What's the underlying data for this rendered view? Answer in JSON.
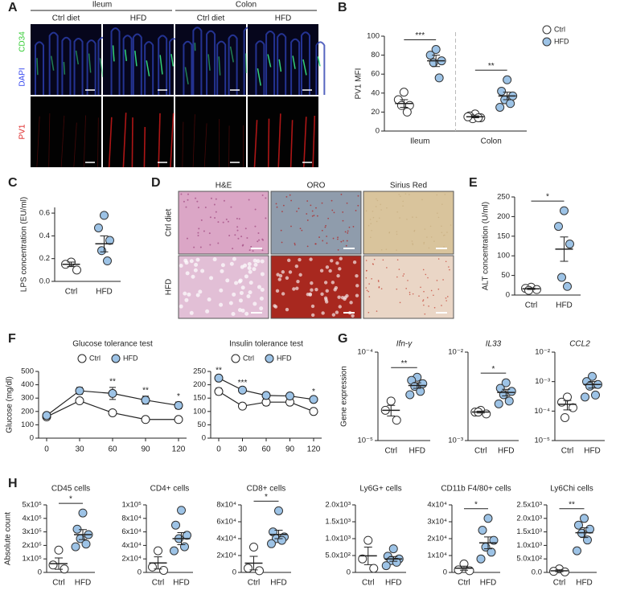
{
  "figure": {
    "panel_labels": [
      "A",
      "B",
      "C",
      "D",
      "E",
      "F",
      "G",
      "H"
    ],
    "panel_a": {
      "tissues": [
        "Ileum",
        "Colon"
      ],
      "conditions": [
        "Ctrl diet",
        "HFD",
        "Ctrl diet",
        "HFD"
      ],
      "stains": [
        "CD34",
        "DAPI",
        "PV1"
      ]
    },
    "panel_d": {
      "stains": [
        "H&E",
        "ORO",
        "Sirius Red"
      ],
      "conditions": [
        "Ctrl diet",
        "HFD"
      ]
    }
  },
  "chart_data": [
    {
      "type": "dot",
      "ylabel": "PV1 MFI",
      "categories": [
        "Ileum",
        "Colon"
      ],
      "ylim": [
        0,
        100
      ],
      "yticks": [
        0,
        20,
        40,
        60,
        80,
        100
      ],
      "legend": "right",
      "series": [
        {
          "name": "Ctrl",
          "color": "#ffffff",
          "values": [
            [
              41,
              33,
              27,
              27,
              20
            ],
            [
              18,
              16,
              14,
              13,
              14,
              15
            ]
          ],
          "means": [
            29,
            15
          ],
          "errors": [
            4,
            1
          ]
        },
        {
          "name": "HFD",
          "color": "#9dc3e6",
          "values": [
            [
              86,
              80,
              74,
              72,
              56
            ],
            [
              54,
              42,
              37,
              33,
              29,
              25
            ]
          ],
          "means": [
            74,
            37
          ],
          "errors": [
            6,
            4
          ]
        }
      ],
      "significance": [
        "***",
        "**"
      ]
    },
    {
      "type": "dot",
      "ylabel": "LPS concentration (EU/ml)",
      "categories": [
        "Ctrl",
        "HFD"
      ],
      "colors": [
        "#ffffff",
        "#9dc3e6"
      ],
      "values": [
        [
          0.17,
          0.15,
          0.1
        ],
        [
          0.58,
          0.47,
          0.36,
          0.27,
          0.18
        ]
      ],
      "means": [
        0.15,
        0.33
      ],
      "errors": [
        0.02,
        0.07
      ],
      "ylim": [
        0,
        0.65
      ],
      "yticks": [
        {
          "value": 0,
          "label": "0.0"
        },
        0.2,
        0.4,
        0.6
      ]
    },
    {
      "type": "dot",
      "ylabel": "ALT concentration (U/ml)",
      "categories": [
        "Ctrl",
        "HFD"
      ],
      "colors": [
        "#ffffff",
        "#9dc3e6"
      ],
      "values": [
        [
          20,
          17,
          14,
          12
        ],
        [
          215,
          175,
          130,
          45,
          22
        ]
      ],
      "means": [
        16,
        117
      ],
      "errors": [
        2,
        31
      ],
      "ylim": [
        0,
        250
      ],
      "yticks": [
        0,
        50,
        100,
        150,
        200,
        250
      ],
      "significance": "*"
    },
    {
      "type": "line",
      "title": "Glucose tolerance test",
      "ylabel": "Glucose (mg/dl)",
      "x": [
        0,
        30,
        60,
        90,
        120
      ],
      "xlim": [
        0,
        120
      ],
      "xticks": [
        0,
        30,
        60,
        90,
        120
      ],
      "ylim": [
        0,
        500
      ],
      "yticks": [
        0,
        100,
        200,
        300,
        400,
        500
      ],
      "legend": "top",
      "series": [
        {
          "name": "Ctrl",
          "color": "#ffffff",
          "values": [
            160,
            280,
            190,
            140,
            140
          ],
          "errors": [
            6,
            10,
            8,
            5,
            5
          ]
        },
        {
          "name": "HFD",
          "color": "#9dc3e6",
          "values": [
            170,
            355,
            335,
            285,
            245
          ],
          "errors": [
            10,
            25,
            45,
            30,
            25
          ]
        }
      ],
      "significance": [
        null,
        null,
        "**",
        "**",
        "*"
      ]
    },
    {
      "type": "line",
      "title": "Insulin tolerance test",
      "x": [
        0,
        30,
        60,
        90,
        120
      ],
      "xlim": [
        0,
        120
      ],
      "xticks": [
        0,
        30,
        60,
        90,
        120
      ],
      "ylim": [
        0,
        250
      ],
      "yticks": [
        0,
        50,
        100,
        150,
        200,
        250
      ],
      "legend": "top",
      "series": [
        {
          "name": "Ctrl",
          "color": "#ffffff",
          "values": [
            175,
            120,
            135,
            135,
            100
          ],
          "errors": [
            12,
            5,
            12,
            8,
            5
          ]
        },
        {
          "name": "HFD",
          "color": "#9dc3e6",
          "values": [
            225,
            180,
            160,
            158,
            145
          ],
          "errors": [
            8,
            5,
            10,
            10,
            8
          ]
        }
      ],
      "significance": [
        "**",
        "***",
        null,
        null,
        "*"
      ]
    },
    {
      "type": "dot",
      "title": "Ifn-γ",
      "ylabel": "Gene expression",
      "log_scale": true,
      "categories": [
        "Ctrl",
        "HFD"
      ],
      "colors": [
        "#ffffff",
        "#9dc3e6"
      ],
      "values": [
        [
          2.8e-05,
          2.2e-05,
          1.7e-05
        ],
        [
          5.2e-05,
          4.8e-05,
          4.4e-05,
          4.1e-05,
          3.6e-05,
          3.3e-05
        ]
      ],
      "means": [
        2.2e-05,
        4.2e-05
      ],
      "errors": [
        3e-06,
        3e-06
      ],
      "ylim": [
        1e-05,
        0.0001
      ],
      "yticks": [
        {
          "value": 1e-05,
          "label": "10⁻⁵"
        },
        {
          "value": 0.0001,
          "label": "10⁻⁴"
        }
      ],
      "significance": "**"
    },
    {
      "type": "dot",
      "title": "IL33",
      "log_scale": true,
      "categories": [
        "Ctrl",
        "HFD"
      ],
      "colors": [
        "#ffffff",
        "#9dc3e6"
      ],
      "values": [
        [
          0.0022,
          0.0021,
          0.002,
          0.0021
        ],
        [
          0.0045,
          0.0039,
          0.0036,
          0.0033,
          0.0028,
          0.0026
        ]
      ],
      "means": [
        0.0021,
        0.0035
      ],
      "errors": [
        5e-05,
        0.0003
      ],
      "ylim": [
        0.001,
        0.01
      ],
      "yticks": [
        {
          "value": 0.001,
          "label": "10⁻³"
        },
        {
          "value": 0.01,
          "label": "10⁻²"
        }
      ],
      "significance": "*"
    },
    {
      "type": "dot",
      "title": "CCL2",
      "log_scale": true,
      "categories": [
        "Ctrl",
        "HFD"
      ],
      "colors": [
        "#ffffff",
        "#9dc3e6"
      ],
      "values": [
        [
          0.0003,
          0.0002,
          0.00013,
          6e-05
        ],
        [
          0.0015,
          0.001,
          0.0008,
          0.0007,
          0.00035,
          0.0003
        ]
      ],
      "means": [
        0.00017,
        0.0008
      ],
      "errors": [
        6e-05,
        0.0002
      ],
      "ylim": [
        1e-05,
        0.01
      ],
      "yticks": [
        {
          "value": 1e-05,
          "label": "10⁻⁵"
        },
        {
          "value": 0.0001,
          "label": "10⁻⁴"
        },
        {
          "value": 0.001,
          "label": "10⁻³"
        },
        {
          "value": 0.01,
          "label": "10⁻²"
        }
      ]
    },
    {
      "type": "dot",
      "title": "CD45 cells",
      "ylabel": "Absolute count",
      "categories": [
        "Ctrl",
        "HFD"
      ],
      "colors": [
        "#ffffff",
        "#9dc3e6"
      ],
      "values": [
        [
          165000,
          55000,
          25000
        ],
        [
          440000,
          320000,
          280000,
          250000,
          210000,
          190000
        ]
      ],
      "means": [
        65000,
        280000
      ],
      "errors": [
        42000,
        37000
      ],
      "ylim": [
        0,
        500000
      ],
      "yticks": [
        0,
        {
          "value": 100000,
          "label": "1x10⁵"
        },
        {
          "value": 200000,
          "label": "2x10⁵"
        },
        {
          "value": 300000,
          "label": "3x10⁵"
        },
        {
          "value": 400000,
          "label": "4x10⁵"
        },
        {
          "value": 500000,
          "label": "5x10⁵"
        }
      ],
      "significance": "*"
    },
    {
      "type": "dot",
      "title": "CD4+ cells",
      "categories": [
        "Ctrl",
        "HFD"
      ],
      "colors": [
        "#ffffff",
        "#9dc3e6"
      ],
      "values": [
        [
          32000,
          8000,
          3000
        ],
        [
          92000,
          70000,
          55000,
          50000,
          38000,
          32000
        ]
      ],
      "means": [
        14000,
        50000
      ],
      "errors": [
        9000,
        9000
      ],
      "ylim": [
        0,
        100000
      ],
      "yticks": [
        0,
        {
          "value": 20000,
          "label": "2x10⁴"
        },
        {
          "value": 40000,
          "label": "4x10⁴"
        },
        {
          "value": 60000,
          "label": "6x10⁴"
        },
        {
          "value": 80000,
          "label": "8x10⁴"
        },
        {
          "value": 100000,
          "label": "1x10⁵"
        }
      ]
    },
    {
      "type": "dot",
      "title": "CD8+ cells",
      "categories": [
        "Ctrl",
        "HFD"
      ],
      "colors": [
        "#ffffff",
        "#9dc3e6"
      ],
      "values": [
        [
          30000,
          5000,
          2000
        ],
        [
          73000,
          48000,
          42000,
          40000,
          38000,
          34000
        ]
      ],
      "means": [
        11000,
        45000
      ],
      "errors": [
        8000,
        5000
      ],
      "ylim": [
        0,
        80000
      ],
      "yticks": [
        0,
        {
          "value": 20000,
          "label": "2x10⁴"
        },
        {
          "value": 40000,
          "label": "4x10⁴"
        },
        {
          "value": 60000,
          "label": "6x10⁴"
        },
        {
          "value": 80000,
          "label": "8x10⁴"
        }
      ],
      "significance": "*"
    },
    {
      "type": "dot",
      "title": "Ly6G+ cells",
      "categories": [
        "Ctrl",
        "HFD"
      ],
      "colors": [
        "#ffffff",
        "#9dc3e6"
      ],
      "values": [
        [
          950,
          400,
          120
        ],
        [
          700,
          480,
          400,
          350,
          300,
          200
        ]
      ],
      "means": [
        490,
        400
      ],
      "errors": [
        260,
        70
      ],
      "ylim": [
        0,
        2000
      ],
      "yticks": [
        0,
        {
          "value": 500,
          "label": "5.0x10²"
        },
        {
          "value": 1000,
          "label": "1.0x10³"
        },
        {
          "value": 1500,
          "label": "1.5x10³"
        },
        {
          "value": 2000,
          "label": "2.0x10³"
        }
      ]
    },
    {
      "type": "dot",
      "title": "CD11b F4/80+ cells",
      "categories": [
        "Ctrl",
        "HFD"
      ],
      "colors": [
        "#ffffff",
        "#9dc3e6"
      ],
      "values": [
        [
          5000,
          1500,
          1000
        ],
        [
          32000,
          25000,
          19000,
          15000,
          12000,
          8000
        ]
      ],
      "means": [
        2500,
        17500
      ],
      "errors": [
        1200,
        3500
      ],
      "ylim": [
        0,
        40000
      ],
      "yticks": [
        0,
        {
          "value": 10000,
          "label": "1x10⁴"
        },
        {
          "value": 20000,
          "label": "2x10⁴"
        },
        {
          "value": 30000,
          "label": "3x10⁴"
        },
        {
          "value": 40000,
          "label": "4x10⁴"
        }
      ],
      "significance": "*"
    },
    {
      "type": "dot",
      "title": "Ly6Chi cells",
      "categories": [
        "Ctrl",
        "HFD"
      ],
      "colors": [
        "#ffffff",
        "#9dc3e6"
      ],
      "values": [
        [
          130,
          40,
          20
        ],
        [
          2000,
          1750,
          1600,
          1450,
          1200,
          800
        ]
      ],
      "means": [
        60,
        1470
      ],
      "errors": [
        35,
        180
      ],
      "ylim": [
        0,
        2500
      ],
      "yticks": [
        {
          "value": 0,
          "label": "0.0"
        },
        {
          "value": 500,
          "label": "5.0x10²"
        },
        {
          "value": 1000,
          "label": "1.0x10³"
        },
        {
          "value": 1500,
          "label": "1.5x10³"
        },
        {
          "value": 2000,
          "label": "2.0x10³"
        },
        {
          "value": 2500,
          "label": "2.5x10³"
        }
      ],
      "significance": "**"
    }
  ]
}
